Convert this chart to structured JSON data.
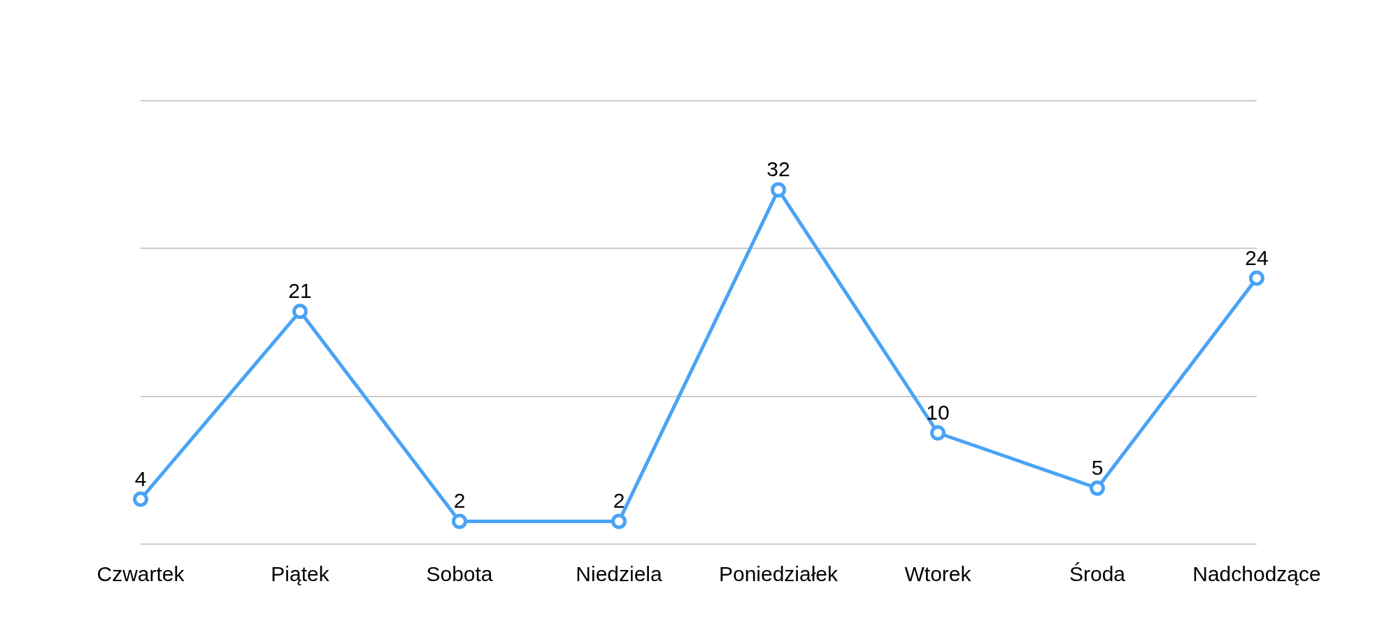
{
  "chart_data": {
    "type": "line",
    "categories": [
      "Czwartek",
      "Piątek",
      "Sobota",
      "Niedziela",
      "Poniedziałek",
      "Wtorek",
      "Środa",
      "Nadchodzące"
    ],
    "series": [
      {
        "color": "#4aa3f5",
        "values": [
          4,
          21,
          2,
          2,
          32,
          10,
          5,
          24
        ]
      }
    ],
    "ylim": [
      0,
      40
    ],
    "yticks": [
      {
        "value": 0,
        "label": null
      },
      {
        "value": 13.3,
        "label": null
      },
      {
        "value": 26.7,
        "label": null
      },
      {
        "value": 40,
        "label": null
      }
    ],
    "tick_labels": "x",
    "grid": "y",
    "marker": "circle",
    "line_style": "solid",
    "data_labels": true
  }
}
